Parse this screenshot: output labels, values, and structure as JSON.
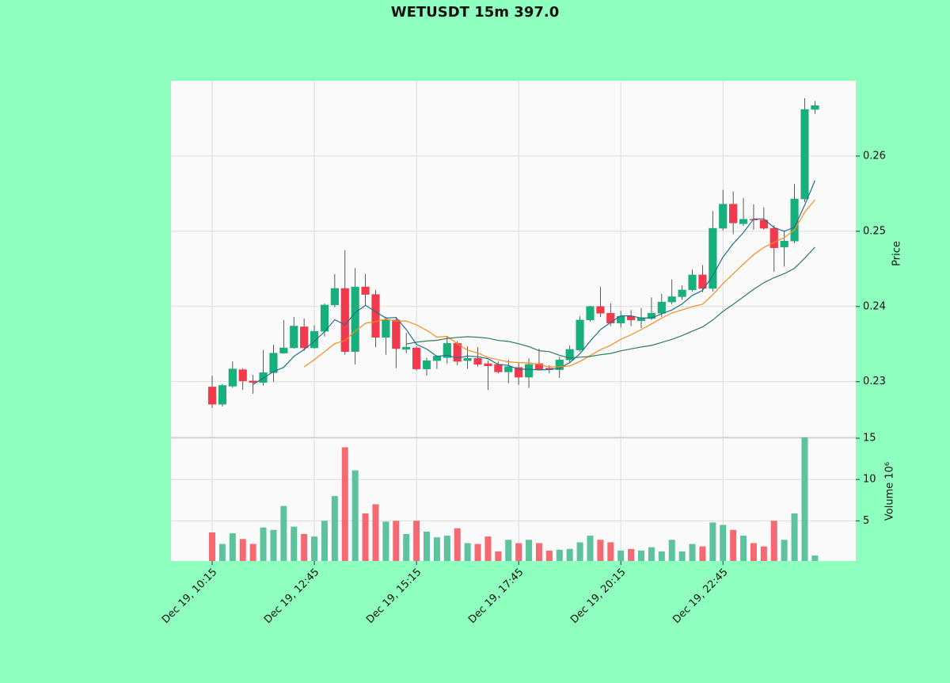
{
  "chart_data": {
    "type": "candlestick",
    "title": "WETUSDT 15m 397.0",
    "ylabel": "Price",
    "vol_ylabel": "Volume 10⁶",
    "categories": [
      "Dec 19, 10:15",
      null,
      null,
      null,
      null,
      null,
      null,
      null,
      null,
      null,
      "Dec 19, 12:45",
      null,
      null,
      null,
      null,
      null,
      null,
      null,
      null,
      null,
      "Dec 19, 15:15",
      null,
      null,
      null,
      null,
      null,
      null,
      null,
      null,
      null,
      "Dec 19, 17:45",
      null,
      null,
      null,
      null,
      null,
      null,
      null,
      null,
      null,
      "Dec 19, 20:15",
      null,
      null,
      null,
      null,
      null,
      null,
      null,
      null,
      null,
      "Dec 19, 22:45",
      null,
      null,
      null,
      null,
      null,
      null,
      null,
      null,
      null
    ],
    "open": [
      0.2293,
      0.227,
      0.2294,
      0.2316,
      0.2301,
      0.2299,
      0.2312,
      0.2338,
      0.2345,
      0.2373,
      0.2345,
      0.2367,
      0.2402,
      0.2424,
      0.234,
      0.2426,
      0.2416,
      0.2359,
      0.2382,
      0.2343,
      0.2345,
      0.2317,
      0.2328,
      0.2332,
      0.2351,
      0.2328,
      0.2331,
      0.2324,
      0.2323,
      0.2313,
      0.2319,
      0.2306,
      0.2324,
      0.2318,
      0.2316,
      0.2329,
      0.2342,
      0.2382,
      0.24,
      0.2391,
      0.2378,
      0.2387,
      0.2381,
      0.2384,
      0.2391,
      0.2406,
      0.2413,
      0.2422,
      0.2442,
      0.2424,
      0.2504,
      0.2536,
      0.251,
      0.2516,
      0.2515,
      0.2504,
      0.2479,
      0.2487,
      0.2543,
      0.2662
    ],
    "high": [
      0.2308,
      0.2297,
      0.2327,
      0.2318,
      0.2309,
      0.2342,
      0.2349,
      0.2382,
      0.2386,
      0.2384,
      0.2375,
      0.2404,
      0.2443,
      0.2475,
      0.2451,
      0.2443,
      0.2422,
      0.2386,
      0.2386,
      0.2365,
      0.2347,
      0.2332,
      0.2335,
      0.236,
      0.2354,
      0.2347,
      0.2346,
      0.2328,
      0.2327,
      0.2329,
      0.2326,
      0.2331,
      0.2344,
      0.2322,
      0.2333,
      0.2348,
      0.2387,
      0.2401,
      0.2426,
      0.2404,
      0.2394,
      0.2395,
      0.2398,
      0.2412,
      0.2417,
      0.2436,
      0.2428,
      0.2449,
      0.2455,
      0.2527,
      0.2555,
      0.2553,
      0.2544,
      0.2536,
      0.2532,
      0.2508,
      0.2501,
      0.2563,
      0.2677,
      0.2673
    ],
    "low": [
      0.2265,
      0.2267,
      0.2292,
      0.2289,
      0.2284,
      0.2295,
      0.23,
      0.2337,
      0.2344,
      0.2341,
      0.2344,
      0.236,
      0.2399,
      0.2336,
      0.2323,
      0.2402,
      0.2346,
      0.2336,
      0.2318,
      0.2338,
      0.2315,
      0.2308,
      0.2317,
      0.2324,
      0.2322,
      0.2317,
      0.232,
      0.2289,
      0.2311,
      0.2298,
      0.2296,
      0.2292,
      0.2315,
      0.2311,
      0.2305,
      0.2325,
      0.234,
      0.238,
      0.2386,
      0.2374,
      0.2372,
      0.2374,
      0.2371,
      0.2382,
      0.2386,
      0.2403,
      0.2409,
      0.242,
      0.2419,
      0.242,
      0.2501,
      0.2496,
      0.2507,
      0.2502,
      0.2502,
      0.2446,
      0.2453,
      0.2484,
      0.2539,
      0.2656
    ],
    "close": [
      0.227,
      0.2295,
      0.2317,
      0.2301,
      0.2299,
      0.2312,
      0.2338,
      0.2345,
      0.2374,
      0.2345,
      0.2367,
      0.2402,
      0.2424,
      0.234,
      0.2426,
      0.2416,
      0.2359,
      0.2382,
      0.2344,
      0.2346,
      0.2317,
      0.2328,
      0.2334,
      0.2351,
      0.2327,
      0.2331,
      0.2323,
      0.2321,
      0.2313,
      0.232,
      0.2306,
      0.2323,
      0.2316,
      0.2316,
      0.2329,
      0.2343,
      0.2382,
      0.24,
      0.2391,
      0.2378,
      0.2387,
      0.2382,
      0.2385,
      0.2391,
      0.2406,
      0.2413,
      0.2422,
      0.2442,
      0.2424,
      0.2504,
      0.2536,
      0.2511,
      0.2516,
      0.2515,
      0.2504,
      0.2478,
      0.2487,
      0.2543,
      0.2662,
      0.2667
    ],
    "volume": [
      3.6,
      2.2,
      3.5,
      2.8,
      2.2,
      4.2,
      3.9,
      6.8,
      4.3,
      3.4,
      3.1,
      5.0,
      8.0,
      13.9,
      11.1,
      5.9,
      7.0,
      4.9,
      5.0,
      3.4,
      5.0,
      3.7,
      3.0,
      3.2,
      4.1,
      2.3,
      2.2,
      3.1,
      1.3,
      2.7,
      2.3,
      2.7,
      2.3,
      1.4,
      1.5,
      1.6,
      2.4,
      3.2,
      2.7,
      2.4,
      1.4,
      1.6,
      1.4,
      1.8,
      1.3,
      2.7,
      1.3,
      2.2,
      1.9,
      4.8,
      4.5,
      3.9,
      3.2,
      2.3,
      1.9,
      5.0,
      2.7,
      5.9,
      15.1,
      0.8
    ],
    "mav": [
      {
        "color": "#1f6f8b",
        "values": [
          null,
          null,
          null,
          null,
          0.22964,
          0.23048,
          0.23134,
          0.2319,
          0.23336,
          0.23428,
          0.23538,
          0.23666,
          0.23824,
          0.23756,
          0.23918,
          0.24016,
          0.2393,
          0.23846,
          0.23854,
          0.23694,
          0.23496,
          0.23434,
          0.23338,
          0.23352,
          0.23314,
          0.23342,
          0.23332,
          0.23306,
          0.2323,
          0.23216,
          0.23166,
          0.23166,
          0.23156,
          0.23162,
          0.2318,
          0.23254,
          0.23372,
          0.2354,
          0.2369,
          0.23788,
          0.23876,
          0.23876,
          0.23846,
          0.23846,
          0.23902,
          0.23954,
          0.24034,
          0.24148,
          0.24214,
          0.2441,
          0.24656,
          0.24834,
          0.24982,
          0.25164,
          0.25164,
          0.25048,
          0.25,
          0.25054,
          0.25348,
          0.25674
        ]
      },
      {
        "color": "#ff8a1f",
        "values": [
          null,
          null,
          null,
          null,
          null,
          null,
          null,
          null,
          null,
          0.23196,
          0.23293,
          0.234,
          0.23507,
          0.23546,
          0.23673,
          0.23777,
          0.23798,
          0.23835,
          0.23805,
          0.23806,
          0.23756,
          0.23682,
          0.23592,
          0.23603,
          0.23504,
          0.23419,
          0.23383,
          0.23322,
          0.23291,
          0.23265,
          0.23254,
          0.23249,
          0.23231,
          0.23196,
          0.23198,
          0.2321,
          0.23269,
          0.23348,
          0.23426,
          0.23484,
          0.23565,
          0.23624,
          0.23693,
          0.23768,
          0.23845,
          0.23915,
          0.23955,
          0.23997,
          0.2403,
          0.24156,
          0.24305,
          0.24434,
          0.24565,
          0.24689,
          0.24787,
          0.24852,
          0.24917,
          0.25018,
          0.25256,
          0.25419
        ]
      },
      {
        "color": "#2e7d5b",
        "values": [
          null,
          null,
          null,
          null,
          null,
          null,
          null,
          null,
          null,
          null,
          null,
          null,
          null,
          null,
          null,
          null,
          null,
          null,
          null,
          0.23501,
          0.23525,
          0.23541,
          0.2355,
          0.23575,
          0.23589,
          0.23598,
          0.23591,
          0.23579,
          0.23548,
          0.23536,
          0.23505,
          0.23466,
          0.23412,
          0.234,
          0.23351,
          0.23315,
          0.23326,
          0.23335,
          0.23359,
          0.23375,
          0.2341,
          0.23437,
          0.23462,
          0.23482,
          0.23522,
          0.23563,
          0.23612,
          0.23673,
          0.23728,
          0.2382,
          0.23935,
          0.24029,
          0.24129,
          0.24229,
          0.24316,
          0.24384,
          0.24436,
          0.24508,
          0.24643,
          0.24788
        ]
      }
    ],
    "up_color": "#17b07c",
    "down_color": "#f23a4c",
    "vol_up_color": "#5cc39c",
    "vol_down_color": "#f56a70",
    "ylim": [
      0.2226,
      0.27
    ],
    "yticks": [
      0.23,
      0.24,
      0.25,
      0.26
    ],
    "vol_ylim": [
      0.14,
      15.1
    ],
    "vol_yticks": [
      5,
      10,
      15
    ],
    "grid": true
  }
}
